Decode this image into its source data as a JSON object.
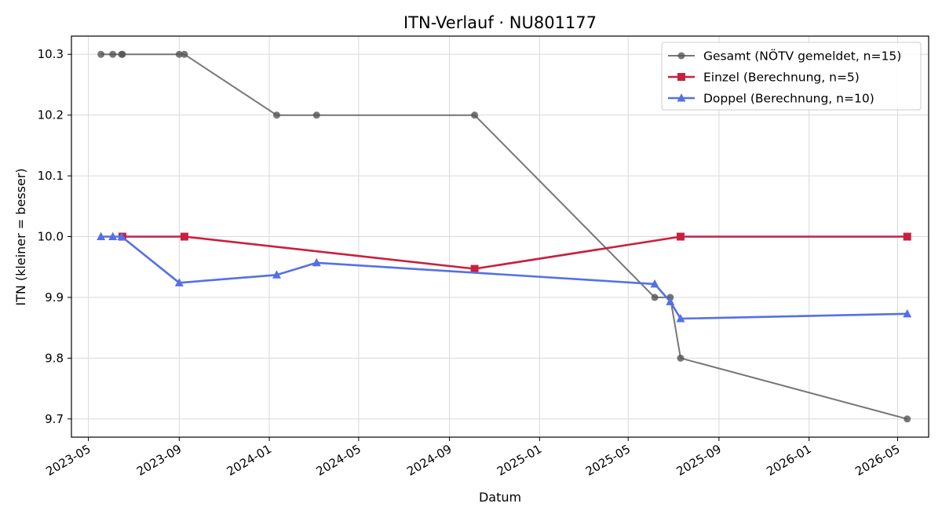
{
  "chart_data": {
    "type": "line",
    "title": "ITN-Verlauf · NU801177",
    "xlabel": "Datum",
    "ylabel": "ITN  (kleiner = besser)",
    "x_tick_labels": [
      "2023-05",
      "2023-09",
      "2024-01",
      "2024-05",
      "2024-09",
      "2025-01",
      "2025-05",
      "2025-09",
      "2026-01",
      "2026-05"
    ],
    "x_ticks": [
      "2023-05-01",
      "2023-09-01",
      "2024-01-01",
      "2024-05-01",
      "2024-09-01",
      "2025-01-01",
      "2025-05-01",
      "2025-09-01",
      "2026-01-01",
      "2026-05-01"
    ],
    "xlim": [
      "2023-04-08",
      "2026-06-12"
    ],
    "y_ticks": [
      9.7,
      9.8,
      9.9,
      10.0,
      10.1,
      10.2,
      10.3
    ],
    "y_tick_labels": [
      "9.7",
      "9.8",
      "9.9",
      "10.0",
      "10.1",
      "10.2",
      "10.3"
    ],
    "ylim": [
      9.67,
      10.33
    ],
    "grid": true,
    "legend_position": "top-right",
    "series": [
      {
        "name": "Gesamt (NÖTV gemeldet, n=15)",
        "color": "#555555",
        "marker": "circle",
        "x": [
          "2023-05-18",
          "2023-06-03",
          "2023-06-15",
          "2023-06-16",
          "2023-09-01",
          "2023-09-08",
          "2024-01-11",
          "2024-03-05",
          "2024-10-05",
          "2025-06-06",
          "2025-06-27",
          "2025-07-11",
          "2026-05-14"
        ],
        "y": [
          10.3,
          10.3,
          10.3,
          10.3,
          10.3,
          10.3,
          10.2,
          10.2,
          10.2,
          9.9,
          9.9,
          9.8,
          9.7
        ]
      },
      {
        "name": "Einzel (Berechnung, n=5)",
        "color": "#c8203e",
        "marker": "square",
        "x": [
          "2023-06-16",
          "2023-09-08",
          "2024-10-05",
          "2025-07-11",
          "2026-05-14"
        ],
        "y": [
          10.0,
          10.0,
          9.947,
          10.0,
          10.0
        ]
      },
      {
        "name": "Doppel (Berechnung, n=10)",
        "color": "#5470e8",
        "marker": "triangle",
        "x": [
          "2023-05-18",
          "2023-06-03",
          "2023-06-15",
          "2023-09-01",
          "2024-01-11",
          "2024-03-05",
          "2025-06-06",
          "2025-06-27",
          "2025-07-11",
          "2026-05-14"
        ],
        "y": [
          10.0,
          10.0,
          10.0,
          9.924,
          9.937,
          9.957,
          9.922,
          9.893,
          9.865,
          9.873
        ]
      }
    ]
  }
}
